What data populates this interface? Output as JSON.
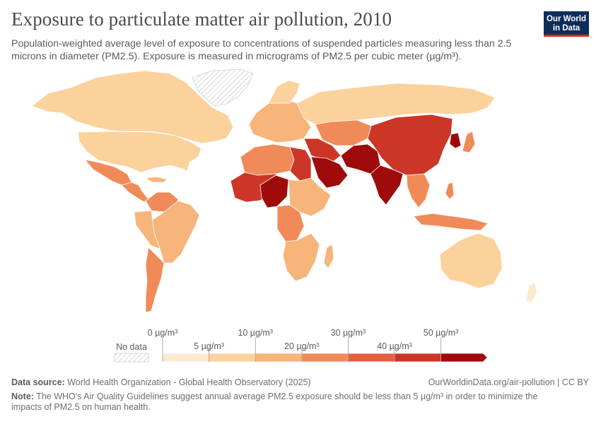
{
  "header": {
    "title": "Exposure to particulate matter air pollution, 2010",
    "subtitle": "Population-weighted average level of exposure to concentrations of suspended particles measuring less than 2.5 microns in diameter (PM2.5). Exposure is measured in micrograms of PM2.5 per cubic meter (µg/m³).",
    "logo_line1": "Our World",
    "logo_line2": "in Data"
  },
  "legend": {
    "no_data": "No data",
    "tick_labels_top": [
      "0 µg/m³",
      "10 µg/m³",
      "30 µg/m³",
      "50 µg/m³"
    ],
    "tick_labels_bottom": [
      "5 µg/m³",
      "20 µg/m³",
      "40 µg/m³"
    ]
  },
  "footer": {
    "source_label": "Data source:",
    "source_text": "World Health Organization - Global Health Observatory (2025)",
    "url": "OurWorldinData.org/air-pollution | CC BY",
    "note_label": "Note:",
    "note_text": "The WHO's Air Quality Guidelines suggest annual average PM2.5 exposure should be less than 5 µg/m³ in order to minimize the impacts of PM2.5 on human health."
  },
  "colors": {
    "bins": [
      "#fde9cf",
      "#fbd19c",
      "#f7b57b",
      "#f18a59",
      "#e5603f",
      "#cc3627",
      "#9e0b0a"
    ],
    "no_data_hatch": "#cfcfcf",
    "logo_bg": "#0f2d5a",
    "logo_accent": "#d42b21"
  }
}
